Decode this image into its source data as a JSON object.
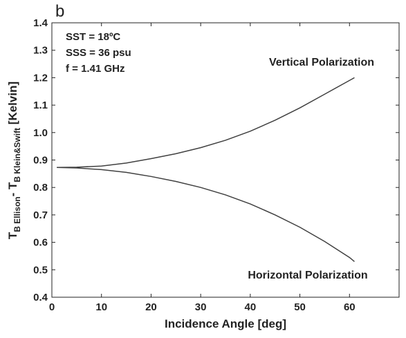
{
  "chart_data": {
    "type": "line",
    "panel_label": "b",
    "xlabel": "Incidence Angle [deg]",
    "ylabel_parts": [
      "T",
      "B Ellison",
      "- T",
      "B Klein&Swift",
      " [Kelvin]"
    ],
    "annotations": [
      "SST = 18ºC",
      "SSS = 36 psu",
      "f = 1.41 GHz"
    ],
    "x": [
      1,
      5,
      10,
      15,
      20,
      25,
      30,
      35,
      40,
      45,
      50,
      55,
      60,
      61
    ],
    "series": [
      {
        "name": "Vertical Polarization",
        "color": "#404040",
        "values": [
          0.873,
          0.874,
          0.878,
          0.889,
          0.905,
          0.923,
          0.945,
          0.972,
          1.005,
          1.045,
          1.09,
          1.14,
          1.19,
          1.2
        ]
      },
      {
        "name": "Horizontal Polarization",
        "color": "#404040",
        "values": [
          0.873,
          0.871,
          0.865,
          0.855,
          0.84,
          0.822,
          0.8,
          0.773,
          0.74,
          0.7,
          0.655,
          0.603,
          0.545,
          0.53
        ]
      }
    ],
    "xlim": [
      0,
      70
    ],
    "xticks": [
      0,
      10,
      20,
      30,
      40,
      50,
      60
    ],
    "ylim": [
      0.4,
      1.4
    ],
    "yticks": [
      0.4,
      0.5,
      0.6,
      0.7,
      0.8,
      0.9,
      {
        "value": 1,
        "label": "1.0"
      },
      1.1,
      1.2,
      1.3,
      1.4
    ]
  }
}
